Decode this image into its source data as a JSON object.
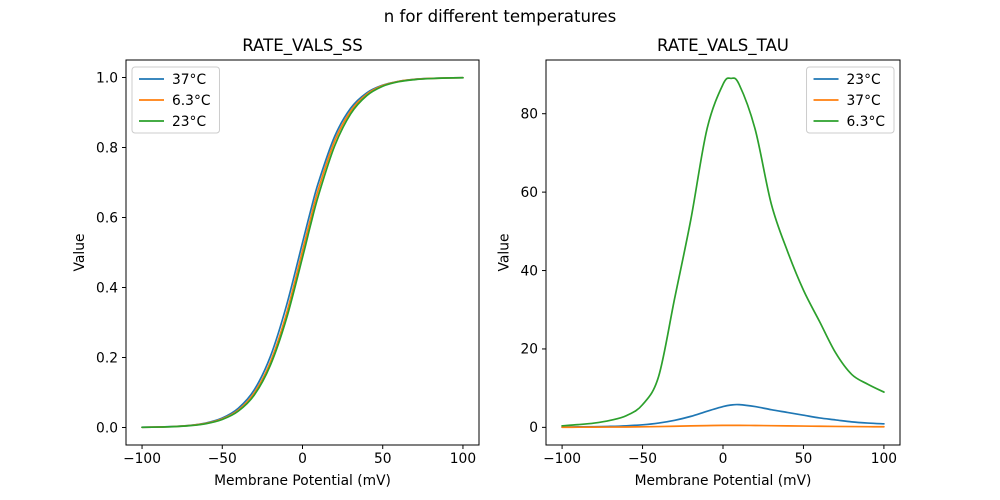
{
  "figure": {
    "suptitle": "n for different temperatures",
    "background": "#ffffff"
  },
  "palette": {
    "blue": "#1f77b4",
    "orange": "#ff7f0e",
    "green": "#2ca02c",
    "axis": "#000000",
    "legend_border": "#cccccc",
    "legend_background": "#ffffff"
  },
  "chart_data": [
    {
      "type": "line",
      "title": "RATE_VALS_SS",
      "xlabel": "Membrane Potential (mV)",
      "ylabel": "Value",
      "xlim": [
        -110,
        110
      ],
      "ylim": [
        -0.05,
        1.05
      ],
      "grid": false,
      "xticks": [
        -100,
        -50,
        0,
        50,
        100
      ],
      "xtick_labels": [
        "−100",
        "−50",
        "0",
        "50",
        "100"
      ],
      "yticks": [
        0.0,
        0.2,
        0.4,
        0.6,
        0.8,
        1.0
      ],
      "ytick_labels": [
        "0.0",
        "0.2",
        "0.4",
        "0.6",
        "0.8",
        "1.0"
      ],
      "legend_loc": "upper-left",
      "x": [
        -100,
        -90,
        -80,
        -70,
        -60,
        -50,
        -40,
        -30,
        -20,
        -10,
        0,
        5,
        10,
        20,
        30,
        40,
        50,
        60,
        70,
        80,
        90,
        100
      ],
      "series": [
        {
          "name": "37°C",
          "color": "#1f77b4",
          "values": [
            0.0007,
            0.0014,
            0.003,
            0.006,
            0.013,
            0.027,
            0.055,
            0.108,
            0.203,
            0.348,
            0.528,
            0.618,
            0.701,
            0.831,
            0.912,
            0.956,
            0.978,
            0.989,
            0.995,
            0.9975,
            0.9988,
            0.9994
          ]
        },
        {
          "name": "6.3°C",
          "color": "#ff7f0e",
          "values": [
            0.0006,
            0.0013,
            0.0027,
            0.0057,
            0.0118,
            0.0244,
            0.0496,
            0.099,
            0.187,
            0.325,
            0.505,
            0.596,
            0.682,
            0.818,
            0.904,
            0.952,
            0.977,
            0.989,
            0.9946,
            0.9974,
            0.9987,
            0.9994
          ]
        },
        {
          "name": "23°C",
          "color": "#2ca02c",
          "values": [
            0.0006,
            0.0012,
            0.0025,
            0.0053,
            0.011,
            0.0229,
            0.0468,
            0.093,
            0.178,
            0.311,
            0.486,
            0.578,
            0.664,
            0.804,
            0.896,
            0.948,
            0.975,
            0.988,
            0.994,
            0.997,
            0.9986,
            0.9993
          ]
        }
      ]
    },
    {
      "type": "line",
      "title": "RATE_VALS_TAU",
      "xlabel": "Membrane Potential (mV)",
      "ylabel": "Value",
      "xlim": [
        -110,
        110
      ],
      "ylim": [
        -4.5,
        93.7
      ],
      "grid": false,
      "xticks": [
        -100,
        -50,
        0,
        50,
        100
      ],
      "xtick_labels": [
        "−100",
        "−50",
        "0",
        "50",
        "100"
      ],
      "yticks": [
        0,
        20,
        40,
        60,
        80
      ],
      "ytick_labels": [
        "0",
        "20",
        "40",
        "60",
        "80"
      ],
      "legend_loc": "upper-right",
      "x": [
        -100,
        -90,
        -80,
        -70,
        -60,
        -50,
        -40,
        -30,
        -20,
        -10,
        0,
        5,
        10,
        20,
        30,
        40,
        50,
        60,
        70,
        80,
        90,
        100
      ],
      "series": [
        {
          "name": "23°C",
          "color": "#1f77b4",
          "values": [
            0.1,
            0.12,
            0.17,
            0.25,
            0.4,
            0.65,
            1.1,
            1.8,
            2.8,
            4.1,
            5.3,
            5.7,
            5.8,
            5.3,
            4.5,
            3.8,
            3.1,
            2.4,
            1.9,
            1.4,
            1.1,
            0.9
          ]
        },
        {
          "name": "37°C",
          "color": "#ff7f0e",
          "values": [
            0.03,
            0.04,
            0.05,
            0.07,
            0.1,
            0.14,
            0.2,
            0.28,
            0.37,
            0.45,
            0.5,
            0.51,
            0.51,
            0.48,
            0.43,
            0.38,
            0.33,
            0.28,
            0.24,
            0.2,
            0.17,
            0.15
          ]
        },
        {
          "name": "6.3°C",
          "color": "#2ca02c",
          "values": [
            0.4,
            0.7,
            1.1,
            1.8,
            3.0,
            5.8,
            13,
            33,
            53,
            76,
            87.5,
            89,
            87.5,
            76,
            57,
            45,
            35,
            27,
            19,
            13.5,
            11,
            9
          ]
        }
      ]
    }
  ]
}
